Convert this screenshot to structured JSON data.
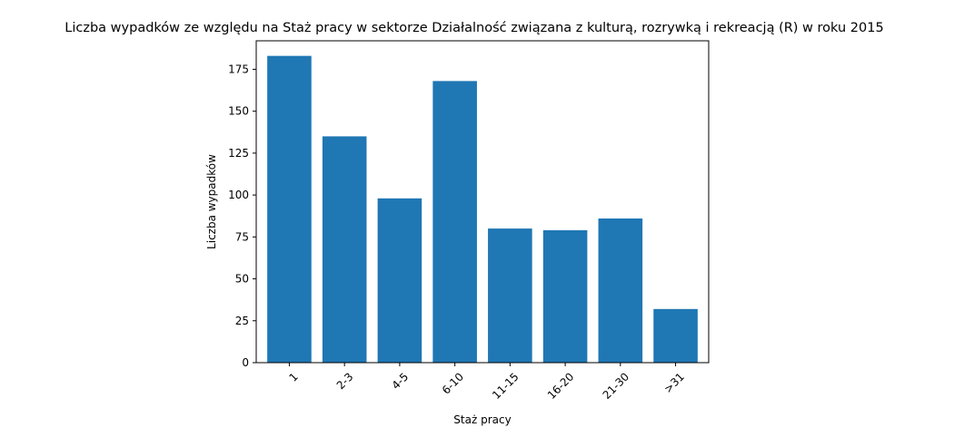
{
  "chart_data": {
    "type": "bar",
    "title": "Liczba wypadków ze względu na Staż pracy w sektorze Działalność związana z kulturą, rozrywką i rekreacją (R) w roku 2015",
    "xlabel": "Staż pracy",
    "ylabel": "Liczba wypadków",
    "categories": [
      "1",
      "2-3",
      "4-5",
      "6-10",
      "11-15",
      "16-20",
      "21-30",
      ">31"
    ],
    "values": [
      183,
      135,
      98,
      168,
      80,
      79,
      86,
      32
    ],
    "ylim": [
      0,
      192
    ],
    "yticks": [
      0,
      25,
      50,
      75,
      100,
      125,
      150,
      175
    ],
    "bar_color": "#1f77b4",
    "xtick_rotation": 45,
    "grid": false,
    "legend": "none"
  }
}
